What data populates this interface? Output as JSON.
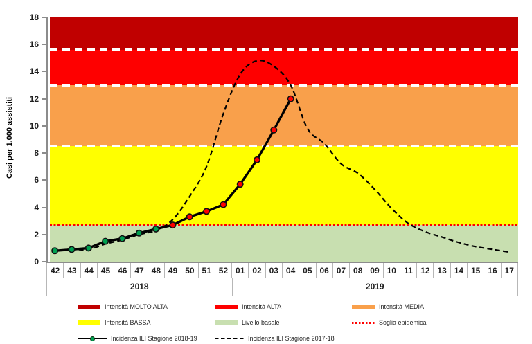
{
  "chart_data": {
    "type": "line",
    "title": "",
    "ylabel": "Casi per 1.000 assistiti",
    "xlabel": "",
    "ylim": [
      0,
      18
    ],
    "y_ticks": [
      0,
      2,
      4,
      6,
      8,
      10,
      12,
      14,
      16,
      18
    ],
    "categories": [
      "42",
      "43",
      "44",
      "45",
      "46",
      "47",
      "48",
      "49",
      "50",
      "51",
      "52",
      "01",
      "02",
      "03",
      "04",
      "05",
      "06",
      "07",
      "08",
      "09",
      "10",
      "11",
      "12",
      "13",
      "14",
      "15",
      "16",
      "17"
    ],
    "year_groups": [
      {
        "label": "2018",
        "span": 11
      },
      {
        "label": "2019",
        "span": 17
      }
    ],
    "bands": [
      {
        "label": "Intensità MOLTO ALTA",
        "from": 15.6,
        "to": 18,
        "color": "#C00000"
      },
      {
        "label": "Intensità ALTA",
        "from": 13.0,
        "to": 15.6,
        "color": "#FE0000"
      },
      {
        "label": "Intensità MEDIA",
        "from": 8.5,
        "to": 13.0,
        "color": "#F9A04B"
      },
      {
        "label": "Intensità BASSA",
        "from": 2.7,
        "to": 8.5,
        "color": "#FFFF00"
      },
      {
        "label": "Livello basale",
        "from": 0,
        "to": 2.7,
        "color": "#C8DFB0"
      }
    ],
    "band_divider_style": "white-dashed",
    "threshold": {
      "label": "Soglia epidemica",
      "value": 2.7,
      "color": "#FF0000",
      "style": "dotted"
    },
    "series": [
      {
        "name": "Incidenza ILI Stagione 2018-19",
        "type": "line+markers",
        "line_color": "#000000",
        "marker_color_below_threshold": "#00A050",
        "marker_color_at_or_above_threshold": "#FF0000",
        "values": [
          0.8,
          0.9,
          1.0,
          1.5,
          1.7,
          2.1,
          2.4,
          2.7,
          3.3,
          3.7,
          4.2,
          5.7,
          7.5,
          9.7,
          12.0
        ]
      },
      {
        "name": "Incidenza ILI Stagione 2017-18",
        "type": "dashed-line",
        "line_color": "#000000",
        "values": [
          0.8,
          0.9,
          0.9,
          1.3,
          1.6,
          2.0,
          2.3,
          3.1,
          4.8,
          7.0,
          10.9,
          13.8,
          14.8,
          14.4,
          13.0,
          9.8,
          8.7,
          7.2,
          6.5,
          5.3,
          3.9,
          2.8,
          2.2,
          1.8,
          1.4,
          1.1,
          0.9,
          0.7
        ]
      }
    ],
    "legend_position": "bottom",
    "grid": false
  }
}
